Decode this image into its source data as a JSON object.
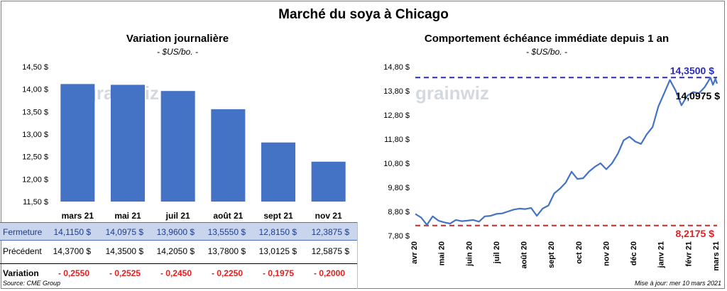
{
  "title": "Marché du soya à Chicago",
  "left_title": "Variation journalière",
  "left_unit": "- $US/bo. -",
  "right_title": "Comportement échéance immédiate depuis 1 an",
  "right_unit": "- $US/bo. -",
  "watermark": "grainwiz",
  "chart_data": [
    {
      "type": "bar",
      "title": "Variation journalière",
      "ylabel": "- $US/bo. -",
      "ylim": [
        11.5,
        14.5
      ],
      "yticks": [
        "11,50 $",
        "12,00 $",
        "12,50 $",
        "13,00 $",
        "13,50 $",
        "14,00 $",
        "14,50 $"
      ],
      "yticks_values": [
        11.5,
        12.0,
        12.5,
        13.0,
        13.5,
        14.0,
        14.5
      ],
      "categories": [
        "mars 21",
        "mai 21",
        "juil 21",
        "août 21",
        "sept 21",
        "nov 21"
      ],
      "values": [
        14.115,
        14.0975,
        13.96,
        13.555,
        12.815,
        12.3875
      ],
      "color": "#4472c4",
      "grid": false
    },
    {
      "type": "line",
      "title": "Comportement échéance immédiate depuis 1 an",
      "ylabel": "- $US/bo. -",
      "ylim": [
        7.8,
        14.8
      ],
      "yticks": [
        "7,80 $",
        "8,80 $",
        "9,80 $",
        "10,80 $",
        "11,80 $",
        "12,80 $",
        "13,80 $",
        "14,80 $"
      ],
      "yticks_values": [
        7.8,
        8.8,
        9.8,
        10.8,
        11.8,
        12.8,
        13.8,
        14.8
      ],
      "xticks": [
        "avr 20",
        "mai 20",
        "juin 20",
        "juil 20",
        "août 20",
        "sept 20",
        "oct 20",
        "nov 20",
        "déc 20",
        "janv 21",
        "févr 21",
        "mars 21"
      ],
      "x": [
        "2020-03-10",
        "2020-03-17",
        "2020-03-24",
        "2020-03-31",
        "2020-04-07",
        "2020-04-14",
        "2020-04-21",
        "2020-04-28",
        "2020-05-05",
        "2020-05-12",
        "2020-05-19",
        "2020-05-26",
        "2020-06-02",
        "2020-06-09",
        "2020-06-16",
        "2020-06-23",
        "2020-06-30",
        "2020-07-07",
        "2020-07-14",
        "2020-07-21",
        "2020-07-28",
        "2020-08-04",
        "2020-08-11",
        "2020-08-18",
        "2020-08-25",
        "2020-09-01",
        "2020-09-08",
        "2020-09-15",
        "2020-09-22",
        "2020-09-29",
        "2020-10-06",
        "2020-10-13",
        "2020-10-20",
        "2020-10-27",
        "2020-11-03",
        "2020-11-10",
        "2020-11-17",
        "2020-11-24",
        "2020-12-01",
        "2020-12-08",
        "2020-12-15",
        "2020-12-22",
        "2020-12-29",
        "2021-01-05",
        "2021-01-12",
        "2021-01-19",
        "2021-01-26",
        "2021-02-02",
        "2021-02-09",
        "2021-02-16",
        "2021-02-23",
        "2021-03-02",
        "2021-03-05",
        "2021-03-08",
        "2021-03-10"
      ],
      "values": [
        8.7,
        8.55,
        8.25,
        8.6,
        8.42,
        8.35,
        8.3,
        8.45,
        8.4,
        8.42,
        8.45,
        8.38,
        8.6,
        8.62,
        8.7,
        8.72,
        8.8,
        8.88,
        8.92,
        8.9,
        8.95,
        8.62,
        8.92,
        9.05,
        9.55,
        9.75,
        10.0,
        10.45,
        10.15,
        10.18,
        10.45,
        10.65,
        10.8,
        10.55,
        10.8,
        11.2,
        11.75,
        11.9,
        11.7,
        11.6,
        12.0,
        12.3,
        13.15,
        13.7,
        14.25,
        13.8,
        13.2,
        13.6,
        13.75,
        13.7,
        13.95,
        14.35,
        14.05,
        14.3,
        14.0975
      ],
      "color": "#4472c4",
      "hlines": [
        {
          "value": 14.35,
          "label": "14,3500 $",
          "color": "#2b2bbd"
        },
        {
          "value": 8.2175,
          "label": "8,2175 $",
          "color": "#e02020"
        }
      ],
      "last_label": "14,0975 $",
      "grid": false
    }
  ],
  "table": {
    "rows": [
      {
        "label": "Fermeture",
        "cells": [
          "14,1150  $",
          "14,0975  $",
          "13,9600  $",
          "13,5550  $",
          "12,8150  $",
          "12,3875  $"
        ]
      },
      {
        "label": "Précédent",
        "cells": [
          "14,3700  $",
          "14,3500  $",
          "14,2050  $",
          "13,7800  $",
          "13,0125  $",
          "12,5875  $"
        ]
      },
      {
        "label": "Variation",
        "cells": [
          "- 0,2550",
          "- 0,2525",
          "- 0,2450",
          "- 0,2250",
          "- 0,1975",
          "- 0,2000"
        ]
      }
    ]
  },
  "source": "Source: CME Group",
  "update": "Mise à jour: mer 10 mars 2021"
}
